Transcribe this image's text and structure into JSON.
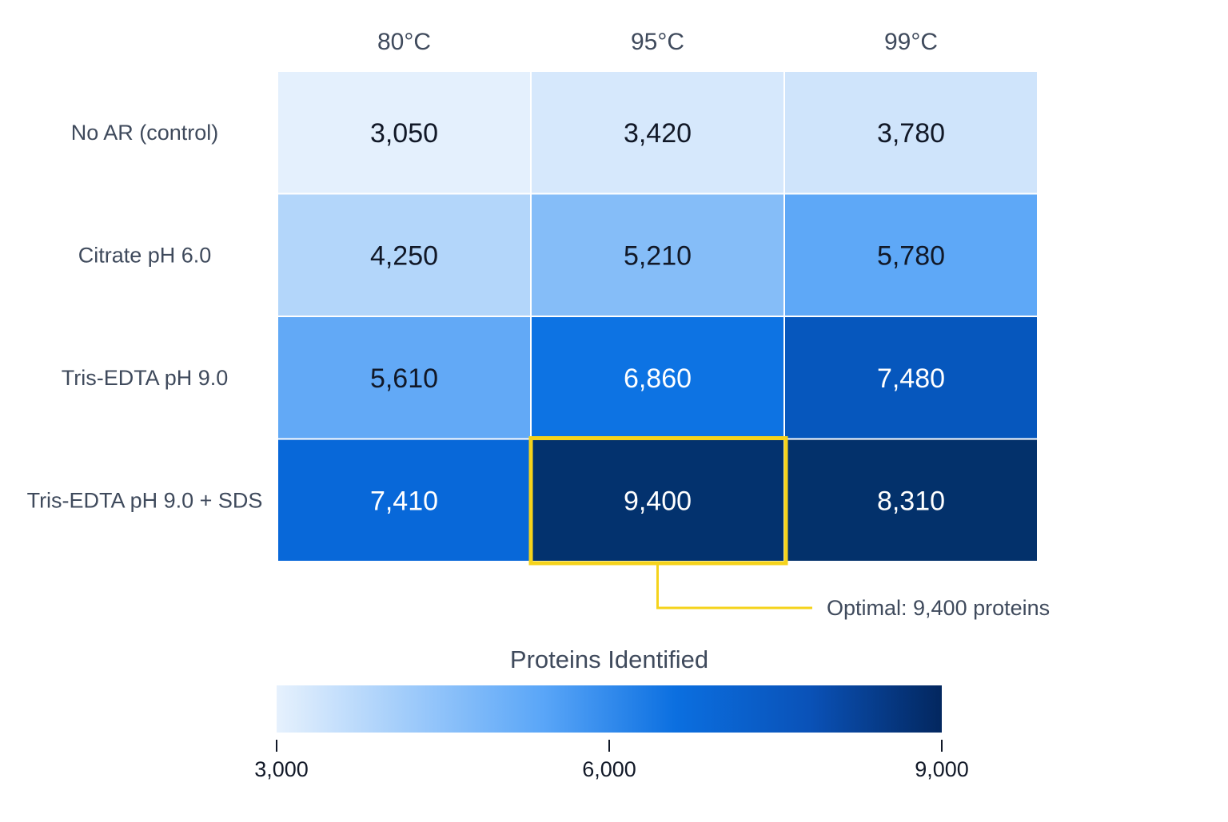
{
  "chart_data": {
    "type": "heatmap",
    "title": "",
    "columns": [
      "80°C",
      "95°C",
      "99°C"
    ],
    "rows": [
      "No AR (control)",
      "Citrate pH 6.0",
      "Tris-EDTA pH 9.0",
      "Tris-EDTA pH 9.0 + SDS"
    ],
    "values": [
      [
        3050,
        3420,
        3780
      ],
      [
        4250,
        5210,
        5780
      ],
      [
        5610,
        6860,
        7480
      ],
      [
        7410,
        9400,
        8310
      ]
    ],
    "value_labels": [
      [
        "3,050",
        "3,420",
        "3,780"
      ],
      [
        "4,250",
        "5,210",
        "5,780"
      ],
      [
        "5,610",
        "6,860",
        "7,480"
      ],
      [
        "7,410",
        "9,400",
        "8,310"
      ]
    ],
    "highlight": {
      "row": 3,
      "col": 1,
      "label": "Optimal: 9,400 proteins",
      "color": "#f5d31b"
    },
    "colorbar": {
      "title": "Proteins Identified",
      "range": [
        3000,
        9000
      ],
      "ticks": [
        3000,
        6000,
        9000
      ],
      "tick_labels": [
        "3,000",
        "6,000",
        "9,000"
      ],
      "colors": [
        "#e6f1fd",
        "#9fcbfa",
        "#5aa6f8",
        "#0b6fe0",
        "#0a52b8",
        "#03275f"
      ]
    },
    "cell_colors": [
      [
        "#e4f0fd",
        "#d6e8fc",
        "#cfe4fb"
      ],
      [
        "#b3d6fa",
        "#85bdf8",
        "#5ea8f7"
      ],
      [
        "#62a9f6",
        "#0d73e3",
        "#0657bd"
      ],
      [
        "#0868d9",
        "#03326e",
        "#03316b"
      ]
    ],
    "text_colors": [
      [
        "#111827",
        "#111827",
        "#111827"
      ],
      [
        "#111827",
        "#111827",
        "#111827"
      ],
      [
        "#111827",
        "#ffffff",
        "#ffffff"
      ],
      [
        "#ffffff",
        "#ffffff",
        "#ffffff"
      ]
    ],
    "label_color": "#3f4a5c"
  }
}
